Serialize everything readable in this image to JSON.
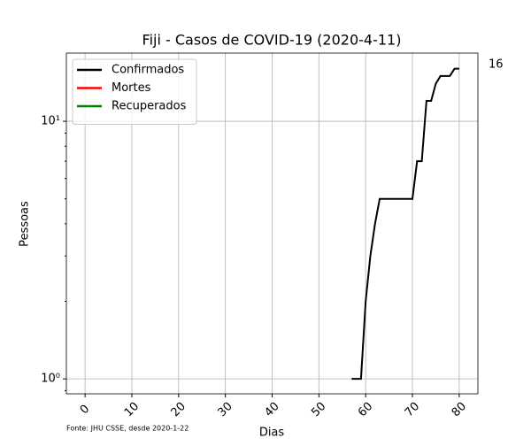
{
  "chart_data": {
    "type": "line",
    "title": "Fiji - Casos de COVID-19 (2020-4-11)",
    "xlabel": "Dias",
    "ylabel": "Pessoas",
    "source": "Fonte: JHU CSSE, desde 2020-1-22",
    "annotation": "16",
    "x": [
      57,
      58,
      59,
      60,
      61,
      62,
      63,
      64,
      65,
      66,
      67,
      68,
      69,
      70,
      71,
      72,
      73,
      74,
      75,
      76,
      77,
      78,
      79,
      80
    ],
    "series": [
      {
        "name": "Confirmados",
        "color": "#000000",
        "values": [
          1,
          1,
          1,
          2,
          3,
          4,
          5,
          5,
          5,
          5,
          5,
          5,
          5,
          5,
          7,
          7,
          12,
          12,
          14,
          15,
          15,
          15,
          16,
          16
        ]
      },
      {
        "name": "Mortes",
        "color": "#ff0000"
      },
      {
        "name": "Recuperados",
        "color": "#008000"
      }
    ],
    "xlim": [
      -4,
      84
    ],
    "xticks": [
      0,
      10,
      20,
      30,
      40,
      50,
      60,
      70,
      80
    ],
    "ylim": [
      0.875,
      18.4
    ],
    "log_y": true,
    "yticks": [
      {
        "value": 1,
        "label": "10⁰"
      },
      {
        "value": 10,
        "label": "10¹"
      }
    ],
    "yminorticks": [
      0.9,
      2,
      3,
      4,
      5,
      6,
      7,
      8,
      9
    ],
    "grid": true,
    "legend": "upper left"
  }
}
